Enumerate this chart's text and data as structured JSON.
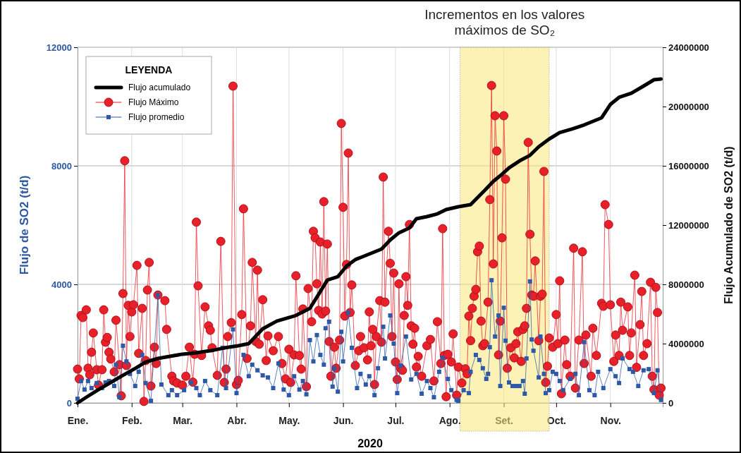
{
  "chart_data": {
    "type": "line",
    "xlabel": "2020",
    "ylabel": "Flujo de SO2 (t/d)",
    "y2label": "Flujo Acumulado de SO2 (t/d)",
    "legend_title": "LEYENDA",
    "legend": "top left",
    "grid": true,
    "xlim": [
      "2020-01-01",
      "2020-12-01"
    ],
    "xticks": [
      {
        "value": "2020-01-01",
        "label": "Ene."
      },
      {
        "value": "2020-02-01",
        "label": "Feb."
      },
      {
        "value": "2020-03-01",
        "label": "Mar."
      },
      {
        "value": "2020-04-01",
        "label": "Abr."
      },
      {
        "value": "2020-05-01",
        "label": "May."
      },
      {
        "value": "2020-06-01",
        "label": "Jun."
      },
      {
        "value": "2020-07-01",
        "label": "Jul."
      },
      {
        "value": "2020-08-01",
        "label": "Ago."
      },
      {
        "value": "2020-09-01",
        "label": "Set."
      },
      {
        "value": "2020-10-01",
        "label": "Oct."
      },
      {
        "value": "2020-11-01",
        "label": "Nov."
      }
    ],
    "ylim": [
      0,
      12000
    ],
    "yticks": [
      0,
      4000,
      8000,
      12000
    ],
    "y2lim": [
      0,
      24000000
    ],
    "y2ticks": [
      0,
      4000000,
      8000000,
      12000000,
      16000000,
      20000000,
      24000000
    ],
    "bands": [
      {
        "axis": "x",
        "from": "2020-08-07",
        "to": "2020-09-27",
        "label": "Incrementos en los valores máximos de SO₂",
        "color": "#fbe87a"
      }
    ],
    "series": [
      {
        "name": "Flujo acumulado",
        "axis": "y2",
        "color": "#000000",
        "marker": "none",
        "x": [
          "2020-01-01",
          "2020-01-06",
          "2020-01-13",
          "2020-01-20",
          "2020-01-27",
          "2020-02-03",
          "2020-02-09",
          "2020-02-16",
          "2020-03-01",
          "2020-03-09",
          "2020-03-17",
          "2020-03-25",
          "2020-04-02",
          "2020-04-08",
          "2020-04-16",
          "2020-04-24",
          "2020-05-05",
          "2020-05-13",
          "2020-05-18",
          "2020-05-23",
          "2020-05-29",
          "2020-06-03",
          "2020-06-08",
          "2020-06-14",
          "2020-06-23",
          "2020-06-28",
          "2020-07-03",
          "2020-07-09",
          "2020-07-13",
          "2020-07-19",
          "2020-07-25",
          "2020-07-30",
          "2020-08-06",
          "2020-08-13",
          "2020-08-17",
          "2020-08-21",
          "2020-08-26",
          "2020-08-31",
          "2020-09-04",
          "2020-09-10",
          "2020-09-16",
          "2020-09-21",
          "2020-09-27",
          "2020-10-03",
          "2020-10-10",
          "2020-10-17",
          "2020-10-27",
          "2020-11-01",
          "2020-11-06",
          "2020-11-13",
          "2020-11-20",
          "2020-11-26",
          "2020-11-30"
        ],
        "values": [
          0,
          380000,
          900000,
          1380000,
          1860000,
          2330000,
          2760000,
          3000000,
          3290000,
          3380000,
          3520000,
          3710000,
          3860000,
          4000000,
          5000000,
          5520000,
          5900000,
          6380000,
          7330000,
          8290000,
          8520000,
          9240000,
          9670000,
          9950000,
          10380000,
          11000000,
          11480000,
          11810000,
          12430000,
          12570000,
          12760000,
          13050000,
          13240000,
          13380000,
          13860000,
          14330000,
          14950000,
          15430000,
          15860000,
          16330000,
          16710000,
          17290000,
          17810000,
          18240000,
          18480000,
          18760000,
          19240000,
          20140000,
          20620000,
          20900000,
          21380000,
          21810000,
          21860000
        ]
      },
      {
        "name": "Flujo Máximo",
        "color": "#e8202a",
        "marker": "circle",
        "x": [
          "2020-01-01",
          "2020-01-02",
          "2020-01-03",
          "2020-01-04",
          "2020-01-06",
          "2020-01-07",
          "2020-01-08",
          "2020-01-09",
          "2020-01-10",
          "2020-01-12",
          "2020-01-13",
          "2020-01-15",
          "2020-01-16",
          "2020-01-17",
          "2020-01-18",
          "2020-01-19",
          "2020-01-20",
          "2020-01-22",
          "2020-01-23",
          "2020-01-25",
          "2020-01-26",
          "2020-01-27",
          "2020-01-28",
          "2020-01-29",
          "2020-01-30",
          "2020-01-31",
          "2020-02-01",
          "2020-02-02",
          "2020-02-04",
          "2020-02-05",
          "2020-02-07",
          "2020-02-08",
          "2020-02-09",
          "2020-02-10",
          "2020-02-11",
          "2020-02-12",
          "2020-02-14",
          "2020-02-15",
          "2020-02-16",
          "2020-02-20",
          "2020-02-21",
          "2020-02-24",
          "2020-02-25",
          "2020-02-27",
          "2020-03-01",
          "2020-03-03",
          "2020-03-05",
          "2020-03-07",
          "2020-03-08",
          "2020-03-09",
          "2020-03-10",
          "2020-03-12",
          "2020-03-14",
          "2020-03-16",
          "2020-03-17",
          "2020-03-18",
          "2020-03-21",
          "2020-03-23",
          "2020-03-25",
          "2020-03-26",
          "2020-03-27",
          "2020-03-29",
          "2020-03-30",
          "2020-04-01",
          "2020-04-02",
          "2020-04-04",
          "2020-04-05",
          "2020-04-07",
          "2020-04-09",
          "2020-04-10",
          "2020-04-12",
          "2020-04-13",
          "2020-04-14",
          "2020-04-16",
          "2020-04-18",
          "2020-04-19",
          "2020-04-22",
          "2020-04-25",
          "2020-04-27",
          "2020-04-29",
          "2020-05-01",
          "2020-05-02",
          "2020-05-04",
          "2020-05-05",
          "2020-05-07",
          "2020-05-08",
          "2020-05-09",
          "2020-05-11",
          "2020-05-12",
          "2020-05-14",
          "2020-05-15",
          "2020-05-16",
          "2020-05-17",
          "2020-05-18",
          "2020-05-19",
          "2020-05-20",
          "2020-05-21",
          "2020-05-22",
          "2020-05-23",
          "2020-05-24",
          "2020-05-25",
          "2020-05-27",
          "2020-05-28",
          "2020-05-30",
          "2020-05-31",
          "2020-06-01",
          "2020-06-02",
          "2020-06-03",
          "2020-06-04",
          "2020-06-05",
          "2020-06-06",
          "2020-06-08",
          "2020-06-10",
          "2020-06-11",
          "2020-06-13",
          "2020-06-15",
          "2020-06-16",
          "2020-06-17",
          "2020-06-18",
          "2020-06-19",
          "2020-06-20",
          "2020-06-22",
          "2020-06-23",
          "2020-06-24",
          "2020-06-25",
          "2020-06-27",
          "2020-06-28",
          "2020-06-29",
          "2020-06-30",
          "2020-07-01",
          "2020-07-02",
          "2020-07-03",
          "2020-07-04",
          "2020-07-05",
          "2020-07-06",
          "2020-07-07",
          "2020-07-08",
          "2020-07-09",
          "2020-07-10",
          "2020-07-11",
          "2020-07-12",
          "2020-07-13",
          "2020-07-14",
          "2020-07-16",
          "2020-07-19",
          "2020-07-21",
          "2020-07-23",
          "2020-07-25",
          "2020-07-27",
          "2020-07-28",
          "2020-07-29",
          "2020-07-30",
          "2020-07-31",
          "2020-08-02",
          "2020-08-03",
          "2020-08-05",
          "2020-08-06",
          "2020-08-08",
          "2020-08-10",
          "2020-08-11",
          "2020-08-12",
          "2020-08-13",
          "2020-08-14",
          "2020-08-15",
          "2020-08-16",
          "2020-08-17",
          "2020-08-18",
          "2020-08-19",
          "2020-08-20",
          "2020-08-21",
          "2020-08-23",
          "2020-08-24",
          "2020-08-25",
          "2020-08-26",
          "2020-08-27",
          "2020-08-28",
          "2020-08-29",
          "2020-08-30",
          "2020-08-31",
          "2020-09-01",
          "2020-09-02",
          "2020-09-03",
          "2020-09-05",
          "2020-09-07",
          "2020-09-08",
          "2020-09-09",
          "2020-09-11",
          "2020-09-12",
          "2020-09-13",
          "2020-09-14",
          "2020-09-15",
          "2020-09-16",
          "2020-09-17",
          "2020-09-18",
          "2020-09-19",
          "2020-09-21",
          "2020-09-22",
          "2020-09-23",
          "2020-09-24",
          "2020-09-25",
          "2020-09-26",
          "2020-09-27",
          "2020-09-29",
          "2020-10-01",
          "2020-10-02",
          "2020-10-03",
          "2020-10-04",
          "2020-10-06",
          "2020-10-07",
          "2020-10-09",
          "2020-10-11",
          "2020-10-12",
          "2020-10-14",
          "2020-10-16",
          "2020-10-17",
          "2020-10-18",
          "2020-10-21",
          "2020-10-22",
          "2020-10-24",
          "2020-10-27",
          "2020-10-28",
          "2020-10-29",
          "2020-10-31",
          "2020-11-01",
          "2020-11-03",
          "2020-11-04",
          "2020-11-06",
          "2020-11-07",
          "2020-11-08",
          "2020-11-11",
          "2020-11-12",
          "2020-11-13",
          "2020-11-15",
          "2020-11-16",
          "2020-11-18",
          "2020-11-19",
          "2020-11-20",
          "2020-11-22",
          "2020-11-24",
          "2020-11-25",
          "2020-11-26",
          "2020-11-27",
          "2020-11-28",
          "2020-11-29",
          "2020-11-30"
        ],
        "values": [
          1140,
          810,
          2950,
          2880,
          3140,
          1170,
          950,
          1710,
          2360,
          1120,
          600,
          1120,
          3140,
          2050,
          2210,
          1710,
          1480,
          1050,
          2790,
          1290,
          240,
          3690,
          8170,
          1260,
          3290,
          2240,
          3070,
          3310,
          4640,
          1670,
          3190,
          50,
          1430,
          3810,
          4740,
          570,
          1880,
          1330,
          3640,
          3450,
          2480,
          900,
          740,
          670,
          600,
          900,
          1880,
          700,
          1640,
          6100,
          3950,
          1600,
          3240,
          2600,
          2450,
          1860,
          930,
          5450,
          690,
          1140,
          2240,
          2710,
          10690,
          620,
          760,
          2980,
          6550,
          1500,
          2600,
          4740,
          2070,
          4480,
          1980,
          3480,
          1430,
          2260,
          1760,
          2240,
          1330,
          810,
          1810,
          690,
          1620,
          4290,
          1600,
          1140,
          3170,
          550,
          3860,
          2740,
          5790,
          5570,
          4020,
          3120,
          5430,
          3000,
          6790,
          3100,
          5360,
          2070,
          900,
          1880,
          1170,
          2120,
          9430,
          6600,
          2930,
          4670,
          8430,
          3050,
          3980,
          1260,
          1760,
          2240,
          1860,
          1450,
          3070,
          1930,
          2480,
          620,
          2240,
          3450,
          2050,
          7620,
          3400,
          5790,
          4710,
          2240,
          4380,
          1380,
          790,
          4020,
          1170,
          1100,
          2950,
          4260,
          3290,
          6020,
          2600,
          1980,
          2520,
          1210,
          1570,
          900,
          1930,
          2140,
          740,
          2740,
          1330,
          5880,
          1600,
          210,
          1640,
          1380,
          2330,
          260,
          1210,
          670,
          1150,
          980,
          2930,
          2100,
          3190,
          3600,
          3830,
          5100,
          5290,
          2760,
          1930,
          2000,
          3400,
          6860,
          10710,
          4690,
          9690,
          8500,
          1620,
          2760,
          5570,
          9690,
          7550,
          1170,
          1860,
          1520,
          2000,
          2400,
          1400,
          2480,
          2600,
          3190,
          8790,
          5690,
          3640,
          3600,
          4790,
          2100,
          3600,
          3670,
          7810,
          690,
          1240,
          2190,
          1880,
          2980,
          2000,
          4120,
          310,
          2120,
          1290,
          900,
          5220,
          500,
          2120,
          5100,
          1330,
          2290,
          900,
          2520,
          1600,
          3360,
          3260,
          6690,
          6020,
          3310,
          1400,
          2290,
          1600,
          3400,
          2450,
          3240,
          1600,
          2360,
          4310,
          1200,
          2640,
          3760,
          1600,
          2000,
          4070,
          900,
          450,
          3900,
          3050,
          260,
          500
        ]
      },
      {
        "name": "Flujo promedio",
        "color": "#2e59a8",
        "marker": "square",
        "x": [
          "2020-01-01",
          "2020-01-03",
          "2020-01-05",
          "2020-01-07",
          "2020-01-09",
          "2020-01-12",
          "2020-01-15",
          "2020-01-17",
          "2020-01-19",
          "2020-01-22",
          "2020-01-23",
          "2020-01-25",
          "2020-01-27",
          "2020-01-29",
          "2020-01-31",
          "2020-02-03",
          "2020-02-05",
          "2020-02-07",
          "2020-02-09",
          "2020-02-12",
          "2020-02-16",
          "2020-02-18",
          "2020-02-22",
          "2020-02-24",
          "2020-02-27",
          "2020-03-02",
          "2020-03-06",
          "2020-03-09",
          "2020-03-11",
          "2020-03-14",
          "2020-03-17",
          "2020-03-21",
          "2020-03-24",
          "2020-03-26",
          "2020-03-30",
          "2020-04-01",
          "2020-04-05",
          "2020-04-08",
          "2020-04-10",
          "2020-04-13",
          "2020-04-16",
          "2020-04-19",
          "2020-04-22",
          "2020-04-25",
          "2020-04-28",
          "2020-05-01",
          "2020-05-04",
          "2020-05-07",
          "2020-05-09",
          "2020-05-11",
          "2020-05-13",
          "2020-05-15",
          "2020-05-17",
          "2020-05-19",
          "2020-05-21",
          "2020-05-22",
          "2020-05-24",
          "2020-05-26",
          "2020-05-27",
          "2020-05-29",
          "2020-05-31",
          "2020-06-01",
          "2020-06-04",
          "2020-06-06",
          "2020-06-09",
          "2020-06-11",
          "2020-06-14",
          "2020-06-16",
          "2020-06-19",
          "2020-06-21",
          "2020-06-24",
          "2020-06-25",
          "2020-06-28",
          "2020-06-30",
          "2020-07-02",
          "2020-07-04",
          "2020-07-07",
          "2020-07-10",
          "2020-07-13",
          "2020-07-16",
          "2020-07-19",
          "2020-07-21",
          "2020-07-23",
          "2020-07-26",
          "2020-07-28",
          "2020-07-31",
          "2020-08-02",
          "2020-08-05",
          "2020-08-06",
          "2020-08-09",
          "2020-08-12",
          "2020-08-13",
          "2020-08-16",
          "2020-08-18",
          "2020-08-20",
          "2020-08-22",
          "2020-08-23",
          "2020-08-24",
          "2020-08-25",
          "2020-08-27",
          "2020-08-29",
          "2020-08-30",
          "2020-09-01",
          "2020-09-02",
          "2020-09-04",
          "2020-09-06",
          "2020-09-08",
          "2020-09-10",
          "2020-09-12",
          "2020-09-13",
          "2020-09-14",
          "2020-09-16",
          "2020-09-17",
          "2020-09-18",
          "2020-09-21",
          "2020-09-22",
          "2020-09-24",
          "2020-09-25",
          "2020-09-27",
          "2020-09-29",
          "2020-10-01",
          "2020-10-03",
          "2020-10-05",
          "2020-10-09",
          "2020-10-12",
          "2020-10-14",
          "2020-10-17",
          "2020-10-20",
          "2020-10-23",
          "2020-10-25",
          "2020-10-28",
          "2020-11-01",
          "2020-11-04",
          "2020-11-06",
          "2020-11-08",
          "2020-11-12",
          "2020-11-14",
          "2020-11-17",
          "2020-11-20",
          "2020-11-23",
          "2020-11-26",
          "2020-11-28",
          "2020-11-30"
        ],
        "values": [
          140,
          740,
          450,
          740,
          500,
          670,
          500,
          690,
          740,
          570,
          1290,
          190,
          1930,
          1400,
          980,
          570,
          1050,
          1620,
          670,
          70,
          3640,
          620,
          260,
          430,
          260,
          430,
          690,
          500,
          260,
          740,
          430,
          260,
          1860,
          500,
          2480,
          330,
          1620,
          900,
          1290,
          1100,
          930,
          860,
          500,
          1330,
          450,
          260,
          900,
          450,
          740,
          290,
          2120,
          1400,
          2290,
          1620,
          1290,
          2520,
          2740,
          550,
          1170,
          380,
          2400,
          1400,
          3050,
          1860,
          500,
          980,
          620,
          900,
          260,
          1170,
          2570,
          1500,
          2950,
          2000,
          330,
          1260,
          2240,
          790,
          980,
          310,
          740,
          500,
          190,
          1050,
          1520,
          810,
          430,
          100,
          70,
          430,
          330,
          1050,
          1620,
          1450,
          1170,
          810,
          980,
          1880,
          4140,
          2240,
          2950,
          570,
          3210,
          2100,
          690,
          570,
          570,
          570,
          740,
          310,
          1500,
          4100,
          2140,
          1760,
          860,
          2240,
          980,
          330,
          430,
          1050,
          980,
          740,
          430,
          810,
          980,
          260,
          2050,
          430,
          260,
          1050,
          500,
          1140,
          900,
          670,
          1500,
          1140,
          1050,
          570,
          1100,
          1140,
          330,
          1100,
          100
        ]
      }
    ]
  }
}
